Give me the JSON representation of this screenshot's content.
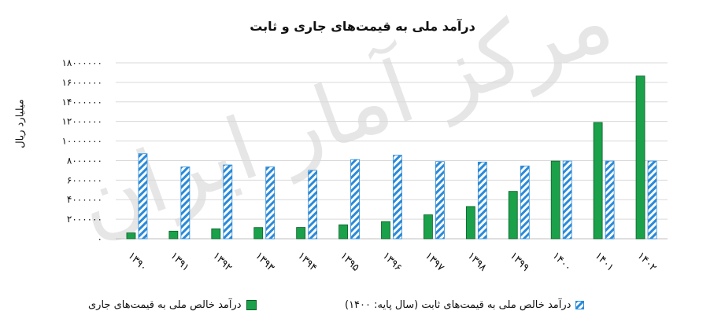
{
  "chart_data": {
    "type": "bar",
    "title": "درآمد ملی به قیمت‌های جاری و ثابت",
    "ylabel": "میلیارد ریال",
    "xlabel": "",
    "categories": [
      "۱۳۹۰",
      "۱۳۹۱",
      "۱۳۹۲",
      "۱۳۹۳",
      "۱۳۹۴",
      "۱۳۹۵",
      "۱۳۹۶",
      "۱۳۹۷",
      "۱۳۹۸",
      "۱۳۹۹",
      "۱۴۰۰",
      "۱۴۰۱",
      "۱۴۰۲"
    ],
    "series": [
      {
        "name": "درآمد خالص ملی به قیمت‌های جاری",
        "color": "#1aa14a",
        "pattern": "solid",
        "values": [
          600000,
          780000,
          1020000,
          1150000,
          1160000,
          1430000,
          1760000,
          2450000,
          3300000,
          4850000,
          7950000,
          11900000,
          16650000
        ]
      },
      {
        "name": "درآمد خالص ملی به قیمت‌های ثابت (سال پایه: ۱۴۰۰)",
        "color": "#2a8ad8",
        "pattern": "diagonal-hatch",
        "values": [
          8700000,
          7350000,
          7550000,
          7350000,
          7000000,
          8100000,
          8550000,
          7900000,
          7850000,
          7450000,
          7950000,
          7950000,
          7950000
        ]
      }
    ],
    "ylim": [
      0,
      18000000
    ],
    "yticks": [
      0,
      2000000,
      4000000,
      6000000,
      8000000,
      10000000,
      12000000,
      14000000,
      16000000,
      18000000
    ],
    "ytick_labels": [
      "۰",
      "۲۰۰۰۰۰۰",
      "۴۰۰۰۰۰۰",
      "۶۰۰۰۰۰۰",
      "۸۰۰۰۰۰۰",
      "۱۰۰۰۰۰۰۰",
      "۱۲۰۰۰۰۰۰",
      "۱۴۰۰۰۰۰۰",
      "۱۶۰۰۰۰۰۰",
      "۱۸۰۰۰۰۰۰"
    ],
    "grid": true,
    "legend_position": "bottom"
  },
  "watermark": {
    "text": "مرکز آمار ایران"
  }
}
